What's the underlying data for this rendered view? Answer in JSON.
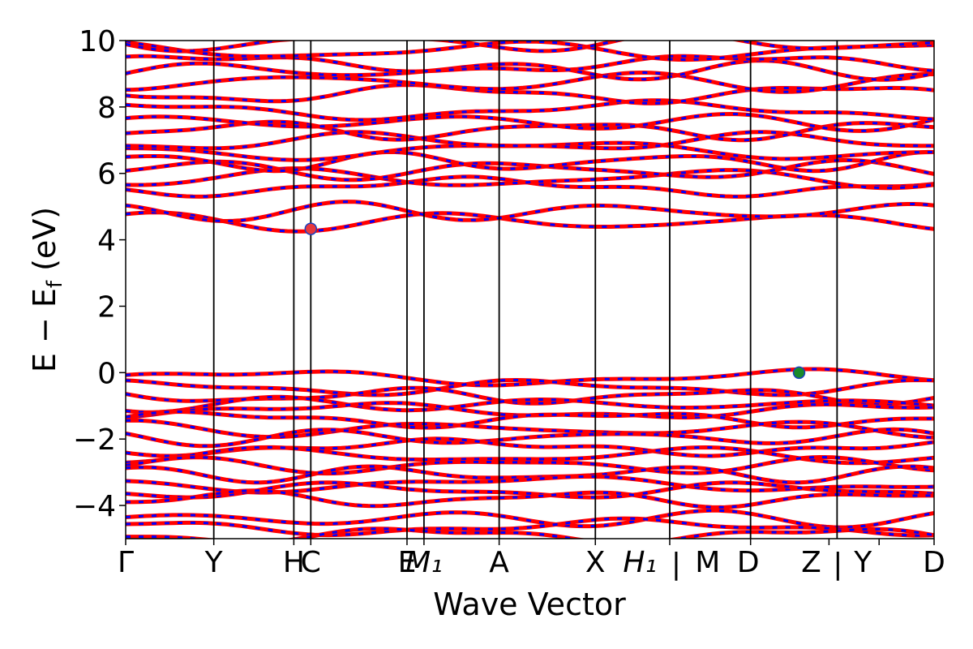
{
  "chart_data": {
    "type": "line",
    "title": "",
    "xlabel": "Wave Vector",
    "ylabel": "E − E_f (eV)",
    "ylabel_main": "E − E",
    "ylabel_sub": "f",
    "ylabel_tail": " (eV)",
    "ylim": [
      -5,
      10
    ],
    "y_ticks": [
      -4,
      -2,
      0,
      2,
      4,
      6,
      8,
      10
    ],
    "y_tick_labels": [
      "−4",
      "−2",
      "0",
      "2",
      "4",
      "6",
      "8",
      "10"
    ],
    "x_range": [
      0,
      1
    ],
    "kpoints": [
      {
        "label": "Γ",
        "pos": 0.0,
        "italic": false
      },
      {
        "label": "Y",
        "pos": 0.109,
        "italic": false
      },
      {
        "label": "H",
        "pos": 0.208,
        "italic": false
      },
      {
        "label": "C",
        "pos": 0.229,
        "italic": false
      },
      {
        "label": "E",
        "pos": 0.348,
        "italic": false
      },
      {
        "label": "M₁",
        "pos": 0.369,
        "italic": true
      },
      {
        "label": "A",
        "pos": 0.462,
        "italic": false
      },
      {
        "label": "X",
        "pos": 0.581,
        "italic": false
      },
      {
        "label": "H₁",
        "pos": 0.673,
        "italic": true
      },
      {
        "label": "M",
        "pos": 0.773,
        "italic": false
      },
      {
        "label": "D",
        "pos": 0.87,
        "italic": false
      },
      {
        "label": "Z",
        "pos": 0.932,
        "italic": false
      },
      {
        "label": "Y",
        "pos": 1.0,
        "italic": false
      },
      {
        "label": "D",
        "pos": 1.0,
        "italic": false
      }
    ],
    "separators": [
      "|",
      "|"
    ],
    "line_positions": [
      0.109,
      0.208,
      0.229,
      0.348,
      0.369,
      0.462,
      0.581,
      0.673,
      0.773,
      0.88
    ],
    "markers": [
      {
        "name": "cbm",
        "x": 0.229,
        "y": 4.33,
        "color": "#e8383d"
      },
      {
        "name": "vbm",
        "x": 0.833,
        "y": 0.0,
        "color": "#1a8a2a"
      }
    ],
    "series_colors": {
      "primary": "#ff0000",
      "secondary": "#0000ff"
    },
    "valence_bands": [
      -0.15,
      -0.45,
      -0.7,
      -0.95,
      -1.15,
      -1.4,
      -1.7,
      -1.95,
      -2.25,
      -2.5,
      -2.8,
      -3.05,
      -3.35,
      -3.55,
      -3.8,
      -4.4,
      -4.65,
      -4.9
    ],
    "conduction_bands": [
      4.55,
      4.85,
      5.6,
      5.85,
      6.1,
      6.35,
      6.7,
      6.95,
      7.3,
      7.55,
      7.9,
      8.4,
      8.75,
      9.1,
      9.3,
      9.7,
      9.95
    ]
  }
}
